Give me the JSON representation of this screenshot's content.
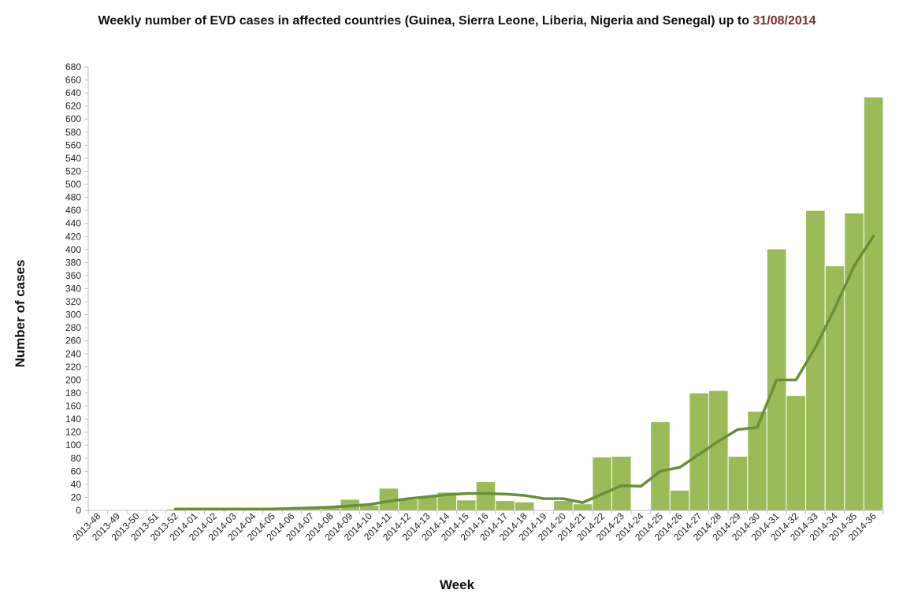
{
  "chart_data": {
    "type": "bar",
    "title": "Weekly number of EVD cases in affected countries (Guinea, Sierra Leone, Liberia, Nigeria and Senegal) up to",
    "title_date": "31/08/2014",
    "xlabel": "Week",
    "ylabel": "Number of cases",
    "ylim": [
      0,
      680
    ],
    "ytick_step": 20,
    "grid": false,
    "colors": {
      "bar": "#9bbb59",
      "bar_border": "#ffffff",
      "line": "#6a8e3a",
      "axis": "#bfbfbf",
      "title_date": "#7a2f2f"
    },
    "categories": [
      "2013-48",
      "2013-49",
      "2013-50",
      "2013-51",
      "2013-52",
      "2014-01",
      "2014-02",
      "2014-03",
      "2014-04",
      "2014-05",
      "2014-06",
      "2014-07",
      "2014-08",
      "2014-09",
      "2014-10",
      "2014-11",
      "2014-12",
      "2014-13",
      "2014-14",
      "2014-15",
      "2014-16",
      "2014-17",
      "2014-18",
      "2014-19",
      "2014-20",
      "2014-21",
      "2014-22",
      "2014-23",
      "2014-24",
      "2014-25",
      "2014-26",
      "2014-27",
      "2014-28",
      "2014-29",
      "2014-30",
      "2014-31",
      "2014-32",
      "2014-33",
      "2014-34",
      "2014-35",
      "2014-36"
    ],
    "series": [
      {
        "type": "bar",
        "values": [
          0,
          0,
          1,
          1,
          2,
          2,
          2,
          2,
          2,
          2,
          3,
          4,
          5,
          17,
          8,
          34,
          17,
          22,
          28,
          16,
          44,
          15,
          13,
          1,
          15,
          10,
          82,
          83,
          0,
          136,
          31,
          180,
          184,
          83,
          152,
          401,
          176,
          460,
          375,
          456,
          634
        ]
      },
      {
        "type": "line",
        "values": [
          null,
          null,
          null,
          null,
          2,
          2,
          2,
          2,
          2,
          2,
          3,
          4,
          5,
          7,
          9,
          14,
          18,
          21,
          24,
          26,
          26,
          25,
          23,
          18,
          18,
          12,
          25,
          38,
          37,
          60,
          66,
          86,
          106,
          124,
          127,
          200,
          200,
          250,
          310,
          375,
          421
        ]
      }
    ]
  }
}
